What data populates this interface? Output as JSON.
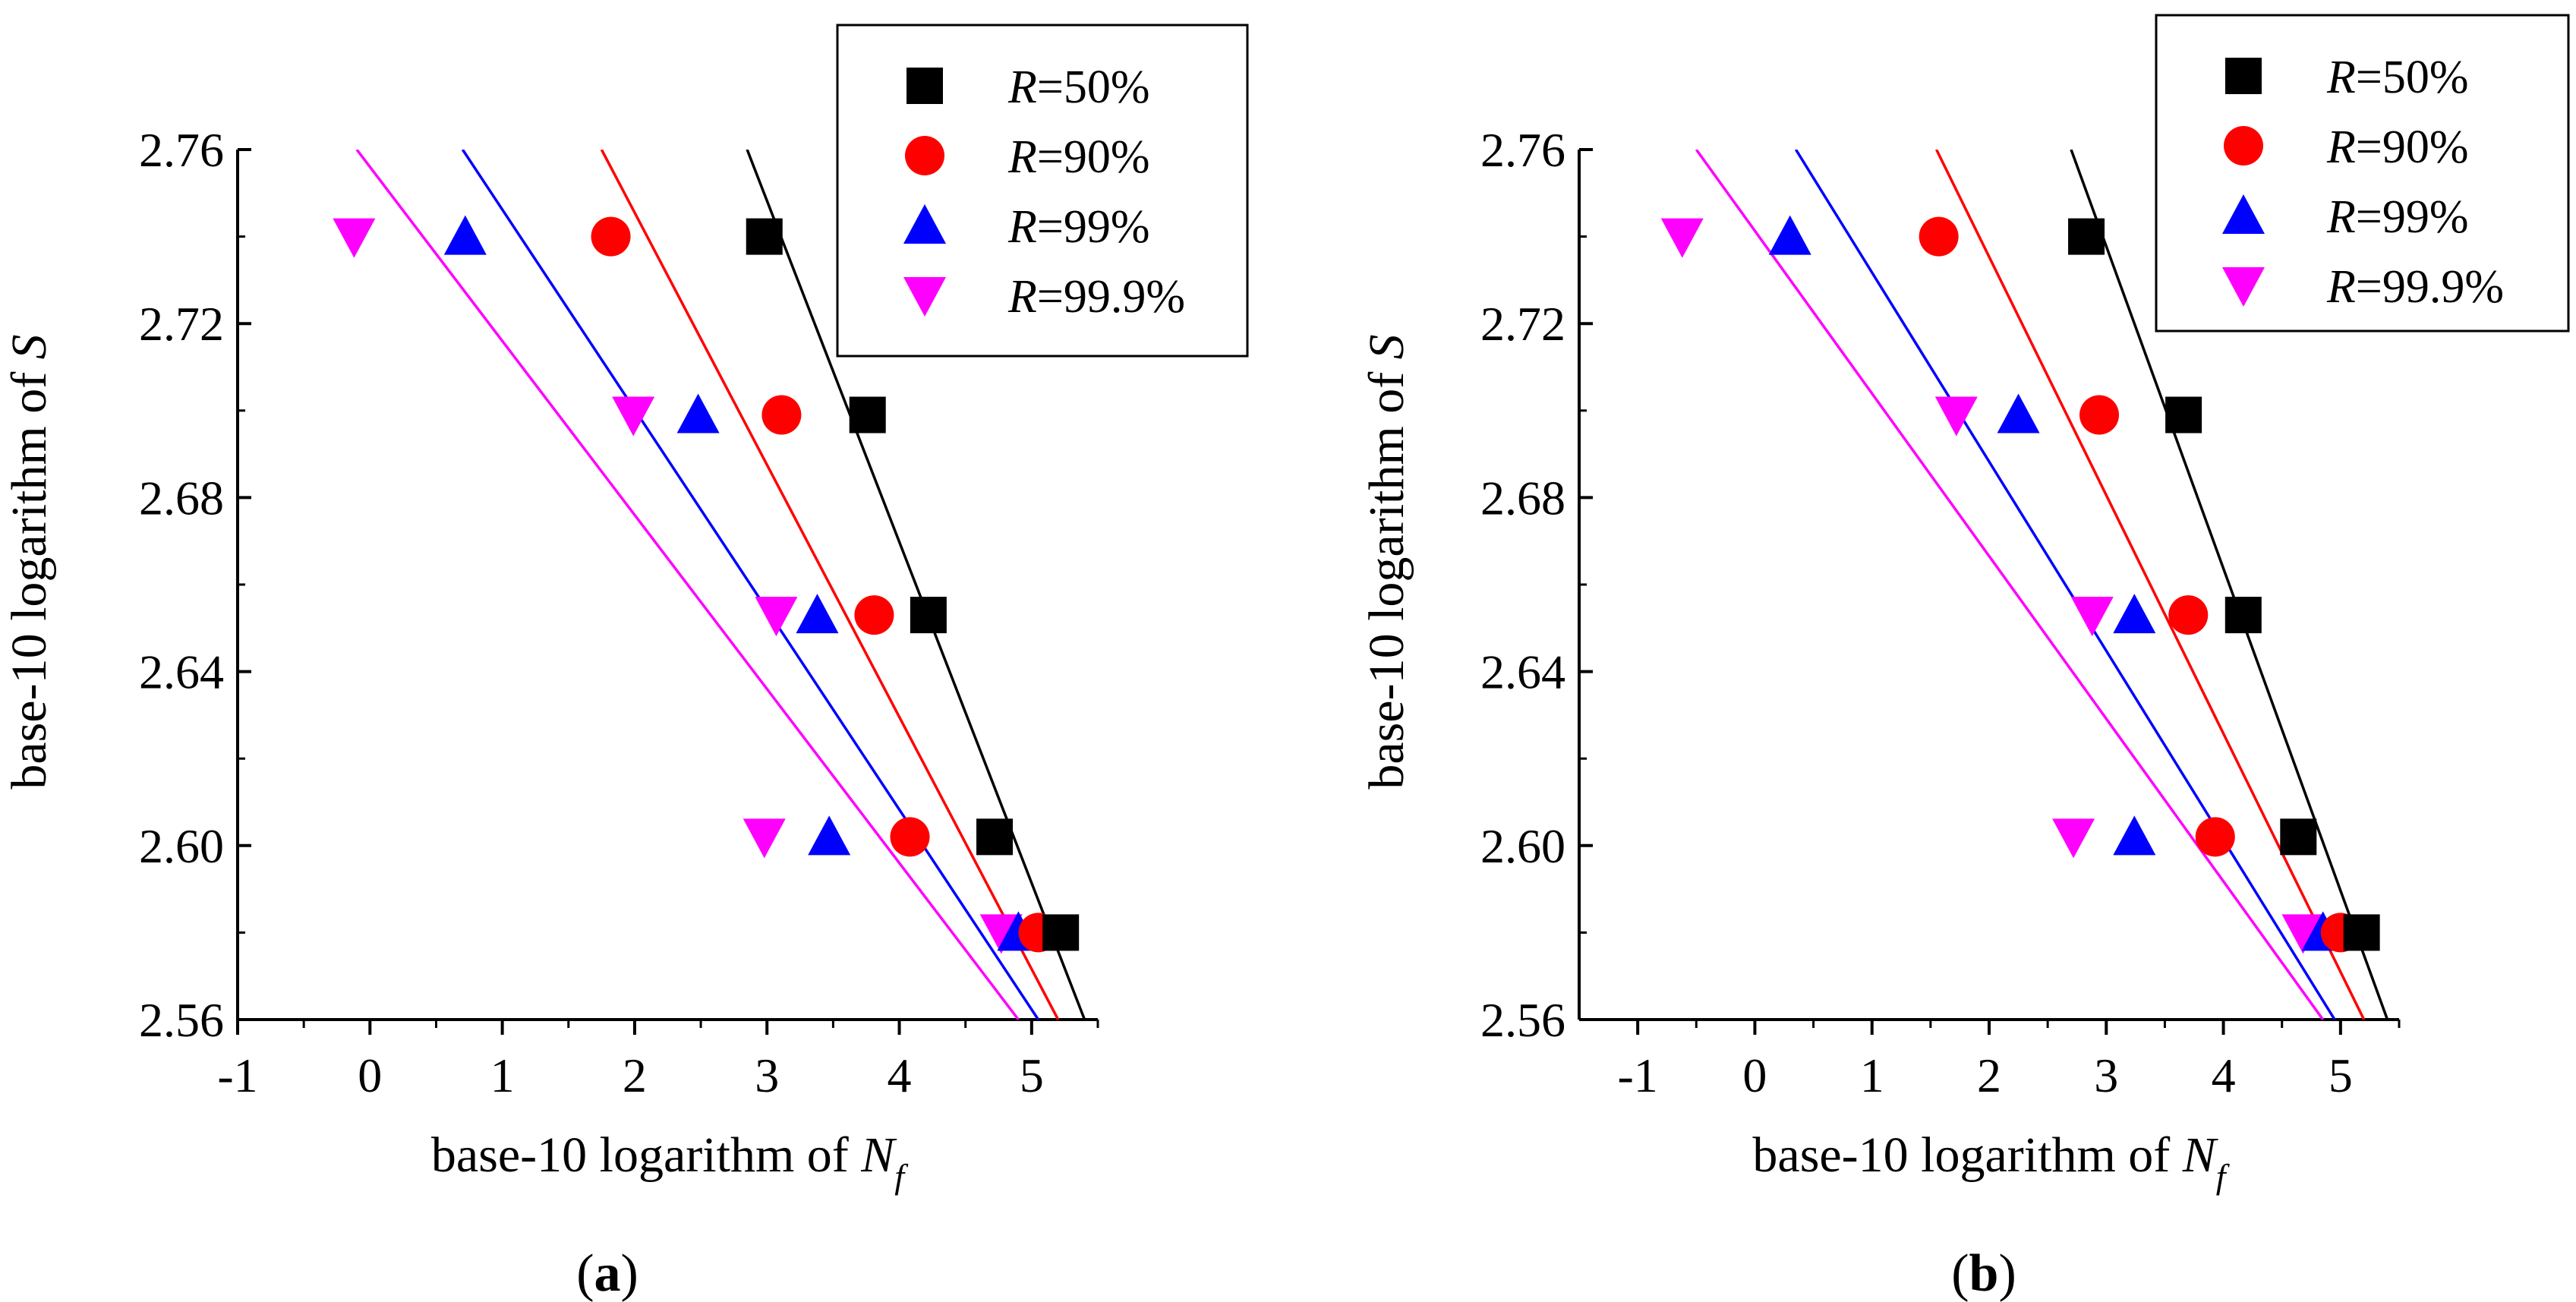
{
  "chart_data": [
    {
      "type": "scatter",
      "panel_label": "a",
      "xlabel": "base-10 logarithm of",
      "xlabel_symbol": "N",
      "xlabel_subscript": "f",
      "ylabel": "base-10 logarithm of",
      "ylabel_symbol": "S",
      "xlim": [
        -1,
        5.5
      ],
      "ylim": [
        2.56,
        2.76
      ],
      "xticks": [
        -1,
        0,
        1,
        2,
        3,
        4,
        5
      ],
      "xtick_labels": [
        "-1",
        "0",
        "1",
        "2",
        "3",
        "4",
        "5"
      ],
      "yticks": [
        2.56,
        2.6,
        2.64,
        2.68,
        2.72,
        2.76
      ],
      "ytick_labels": [
        "2.56",
        "2.60",
        "2.64",
        "2.68",
        "2.72",
        "2.76"
      ],
      "legend_position": "top-right",
      "series": [
        {
          "name": "R=50%",
          "legend_symbol": "R",
          "legend_value": "=50%",
          "marker": "square",
          "color": "#000000",
          "points": [
            [
              2.98,
              2.74
            ],
            [
              3.76,
              2.699
            ],
            [
              4.22,
              2.653
            ],
            [
              4.72,
              2.602
            ],
            [
              5.22,
              2.58
            ]
          ],
          "fit_line": [
            [
              2.85,
              2.76
            ],
            [
              5.4,
              2.56
            ]
          ]
        },
        {
          "name": "R=90%",
          "legend_symbol": "R",
          "legend_value": "=90%",
          "marker": "circle",
          "color": "#ff0000",
          "points": [
            [
              1.82,
              2.74
            ],
            [
              3.11,
              2.699
            ],
            [
              3.81,
              2.653
            ],
            [
              4.08,
              2.602
            ],
            [
              5.05,
              2.58
            ]
          ],
          "fit_line": [
            [
              1.75,
              2.76
            ],
            [
              5.2,
              2.56
            ]
          ]
        },
        {
          "name": "R=99%",
          "legend_symbol": "R",
          "legend_value": "=99%",
          "marker": "triangle-up",
          "color": "#0000ff",
          "points": [
            [
              0.72,
              2.74
            ],
            [
              2.48,
              2.699
            ],
            [
              3.38,
              2.653
            ],
            [
              3.47,
              2.602
            ],
            [
              4.9,
              2.58
            ]
          ],
          "fit_line": [
            [
              0.7,
              2.76
            ],
            [
              5.05,
              2.56
            ]
          ]
        },
        {
          "name": "R=99.9%",
          "legend_symbol": "R",
          "legend_value": "=99.9%",
          "marker": "triangle-down",
          "color": "#ff00ff",
          "points": [
            [
              -0.12,
              2.74
            ],
            [
              1.99,
              2.699
            ],
            [
              3.07,
              2.653
            ],
            [
              2.98,
              2.602
            ],
            [
              4.77,
              2.58
            ]
          ],
          "fit_line": [
            [
              -0.1,
              2.76
            ],
            [
              4.9,
              2.56
            ]
          ]
        }
      ]
    },
    {
      "type": "scatter",
      "panel_label": "b",
      "xlabel": "base-10 logarithm of",
      "xlabel_symbol": "N",
      "xlabel_subscript": "f",
      "ylabel": "base-10 logarithm of",
      "ylabel_symbol": "S",
      "xlim": [
        -1.5,
        5.5
      ],
      "ylim": [
        2.56,
        2.76
      ],
      "xticks": [
        -1,
        0,
        1,
        2,
        3,
        4,
        5
      ],
      "xtick_labels": [
        "-1",
        "0",
        "1",
        "2",
        "3",
        "4",
        "5"
      ],
      "yticks": [
        2.56,
        2.6,
        2.64,
        2.68,
        2.72,
        2.76
      ],
      "ytick_labels": [
        "2.56",
        "2.60",
        "2.64",
        "2.68",
        "2.72",
        "2.76"
      ],
      "legend_position": "top-right",
      "series": [
        {
          "name": "R=50%",
          "legend_symbol": "R",
          "legend_value": "=50%",
          "marker": "square",
          "color": "#000000",
          "points": [
            [
              2.83,
              2.74
            ],
            [
              3.66,
              2.699
            ],
            [
              4.17,
              2.653
            ],
            [
              4.64,
              2.602
            ],
            [
              5.18,
              2.58
            ]
          ],
          "fit_line": [
            [
              2.7,
              2.76
            ],
            [
              5.4,
              2.56
            ]
          ]
        },
        {
          "name": "R=90%",
          "legend_symbol": "R",
          "legend_value": "=90%",
          "marker": "circle",
          "color": "#ff0000",
          "points": [
            [
              1.57,
              2.74
            ],
            [
              2.94,
              2.699
            ],
            [
              3.7,
              2.653
            ],
            [
              3.93,
              2.602
            ],
            [
              5.0,
              2.58
            ]
          ],
          "fit_line": [
            [
              1.55,
              2.76
            ],
            [
              5.2,
              2.56
            ]
          ]
        },
        {
          "name": "R=99%",
          "legend_symbol": "R",
          "legend_value": "=99%",
          "marker": "triangle-up",
          "color": "#0000ff",
          "points": [
            [
              0.3,
              2.74
            ],
            [
              2.25,
              2.699
            ],
            [
              3.24,
              2.653
            ],
            [
              3.24,
              2.602
            ],
            [
              4.85,
              2.58
            ]
          ],
          "fit_line": [
            [
              0.35,
              2.76
            ],
            [
              4.95,
              2.56
            ]
          ]
        },
        {
          "name": "R=99.9%",
          "legend_symbol": "R",
          "legend_value": "=99.9%",
          "marker": "triangle-down",
          "color": "#ff00ff",
          "points": [
            [
              -0.62,
              2.74
            ],
            [
              1.72,
              2.699
            ],
            [
              2.88,
              2.653
            ],
            [
              2.72,
              2.602
            ],
            [
              4.68,
              2.58
            ]
          ],
          "fit_line": [
            [
              -0.5,
              2.76
            ],
            [
              4.85,
              2.56
            ]
          ]
        }
      ]
    }
  ]
}
